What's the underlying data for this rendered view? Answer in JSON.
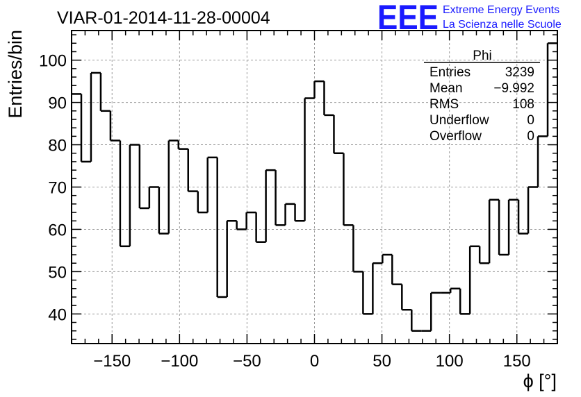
{
  "header": {
    "title": "VIAR-01-2014-11-28-00004",
    "logo": {
      "mark": "EEE",
      "line1": "Extreme Energy Events",
      "line2": "La Scienza nelle Scuole",
      "color": "#1a1aff"
    }
  },
  "chart_data": {
    "type": "histogram",
    "xlabel": "ϕ [°]",
    "ylabel": "Entries/bin",
    "xlim": [
      -180,
      180
    ],
    "ylim": [
      33,
      107
    ],
    "bin_width": 7.2,
    "bin_edges_start": -180,
    "values": [
      92,
      76,
      97,
      88,
      81,
      56,
      80,
      65,
      70,
      59,
      81,
      79,
      69,
      64,
      77,
      44,
      62,
      60,
      64,
      57,
      74,
      61,
      66,
      62,
      91,
      95,
      87,
      78,
      61,
      50,
      40,
      52,
      54,
      47,
      41,
      36,
      36,
      45,
      45,
      46,
      40,
      56,
      52,
      67,
      54,
      67,
      59,
      70,
      82,
      104
    ],
    "x_ticks": [
      -150,
      -100,
      -50,
      0,
      50,
      100,
      150
    ],
    "x_tick_labels": [
      "−150",
      "−100",
      "−50",
      "0",
      "50",
      "100",
      "150"
    ],
    "y_ticks": [
      40,
      50,
      60,
      70,
      80,
      90,
      100
    ],
    "y_tick_labels": [
      "40",
      "50",
      "60",
      "70",
      "80",
      "90",
      "100"
    ],
    "grid": true,
    "line_color": "#000000"
  },
  "stats_box": {
    "name": "Phi",
    "rows": [
      {
        "label": "Entries",
        "value": "3239"
      },
      {
        "label": "Mean",
        "value": "−9.992"
      },
      {
        "label": "RMS",
        "value": "108"
      },
      {
        "label": "Underflow",
        "value": "0"
      },
      {
        "label": "Overflow",
        "value": "0"
      }
    ]
  }
}
